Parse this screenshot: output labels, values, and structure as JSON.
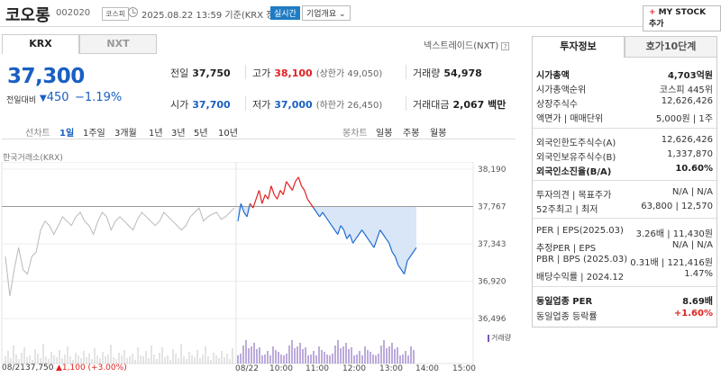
{
  "header": {
    "stock_name": "코오롱",
    "stock_code": "002020",
    "market_badge": "코스피",
    "datetime": "2025.08.22 13:59  기준(KRX 장중)",
    "realtime_badge": "실시간",
    "company_overview_button": "기업개요 ⌄",
    "mystock_plus": "+",
    "mystock_button": " MY STOCK 추가"
  },
  "market_tabs": {
    "krx": "KRX",
    "nxt": "NXT"
  },
  "nextrade_label": "넥스트레이드(NXT)",
  "help_glyph": "?",
  "quote": {
    "price": "37,300",
    "change_label": "전일대비",
    "change_arrow": "▼",
    "change": "450",
    "change_rate": "−1.19%",
    "prev_close_label": "전일",
    "prev_close": "37,750",
    "high_label": "고가",
    "high": "38,100",
    "upper_limit": "(상한가 49,050)",
    "volume_label": "거래량",
    "volume": "54,978",
    "open_label": "시가",
    "open": "37,700",
    "low_label": "저가",
    "low": "37,000",
    "lower_limit": "(하한가 26,450)",
    "trade_value_label": "거래대금",
    "trade_value": "2,067 백만"
  },
  "period_tabs": {
    "line_label": "선차트",
    "line_periods": [
      "1일",
      "1주일",
      "3개월",
      "1년",
      "3년",
      "5년",
      "10년"
    ],
    "candle_label": "봉차트",
    "candle_periods": [
      "일봉",
      "주봉",
      "월봉"
    ]
  },
  "chart_source": "한국거래소(KRX)",
  "chart_data": {
    "type": "line",
    "y_ticks": [
      "38,190",
      "37,767",
      "37,343",
      "36,920",
      "36,496"
    ],
    "ylim": [
      36496,
      38190
    ],
    "x_ticks": [
      "08/21",
      "08/22",
      "10:00",
      "11:00",
      "12:00",
      "13:00",
      "14:00",
      "15:00"
    ],
    "reference_price": 37767,
    "volume_label": "거래량",
    "colors": {
      "prev_day": "#b9b9b9",
      "up": "#e02020",
      "down": "#1f6bd0",
      "fill": "#d8e6f8",
      "volume": "#7b57b8",
      "volume_prev": "#c8c8c8"
    },
    "prev_day_series": [
      37200,
      36750,
      37050,
      37300,
      37050,
      37000,
      37200,
      37250,
      37500,
      37600,
      37550,
      37450,
      37550,
      37650,
      37600,
      37550,
      37650,
      37700,
      37600,
      37550,
      37450,
      37600,
      37700,
      37650,
      37500,
      37600,
      37650,
      37600,
      37550,
      37500,
      37620,
      37700,
      37650,
      37600,
      37550,
      37600,
      37700,
      37650,
      37600,
      37550,
      37500,
      37550,
      37650,
      37700,
      37750,
      37600,
      37650,
      37680,
      37700,
      37620,
      37650,
      37700,
      37750
    ],
    "intraday_series": [
      37600,
      37800,
      37700,
      37650,
      37800,
      37750,
      37850,
      37950,
      37800,
      37900,
      37850,
      38000,
      37900,
      37850,
      37950,
      37900,
      38050,
      38000,
      37950,
      38050,
      38100,
      38000,
      37950,
      37850,
      37800,
      37750,
      37700,
      37650,
      37700,
      37650,
      37600,
      37550,
      37500,
      37450,
      37550,
      37500,
      37400,
      37450,
      37350,
      37400,
      37450,
      37500,
      37450,
      37400,
      37350,
      37300,
      37400,
      37500,
      37450,
      37400,
      37350,
      37250,
      37200,
      37100,
      37050,
      37000,
      37150,
      37200,
      37250,
      37300
    ]
  },
  "footer": {
    "date": "08/21",
    "price": "37,750",
    "change": "▲1,100 (+3.00%)"
  },
  "side_panel": {
    "tab_invest": "투자정보",
    "tab_hoga": "호가10단계",
    "rows": [
      {
        "k": "시가총액",
        "v": "4,703억원",
        "bold": true
      },
      {
        "k": "시가총액순위",
        "v": "코스피 445위"
      },
      {
        "k": "상장주식수",
        "v": "12,626,426"
      },
      {
        "k": "액면가 | 매매단위",
        "v": "5,000원 | 1주"
      },
      {
        "k": "외국인한도주식수(A)",
        "v": "12,626,426"
      },
      {
        "k": "외국인보유주식수(B)",
        "v": "1,337,870"
      },
      {
        "k": "외국인소진율(B/A)",
        "v": "10.60%",
        "bold": true
      },
      {
        "k": "투자의견 | 목표주가",
        "v": "N/A | N/A"
      },
      {
        "k": "52주최고 | 최저",
        "v": "63,800 | 12,570"
      },
      {
        "k": "PER | EPS(2025.03)",
        "v": "3.26배 | 11,430원"
      },
      {
        "k": "추정PER | EPS",
        "v": "N/A | N/A"
      },
      {
        "k": "PBR | BPS (2025.03)",
        "v": "0.31배 | 121,416원"
      },
      {
        "k": "배당수익률 | 2024.12",
        "v": "1.47%"
      },
      {
        "k": "동일업종 PER",
        "v": "8.69배",
        "bold": true
      },
      {
        "k": "동일업종 등락률",
        "v": "+1.60%",
        "red": true
      }
    ]
  }
}
